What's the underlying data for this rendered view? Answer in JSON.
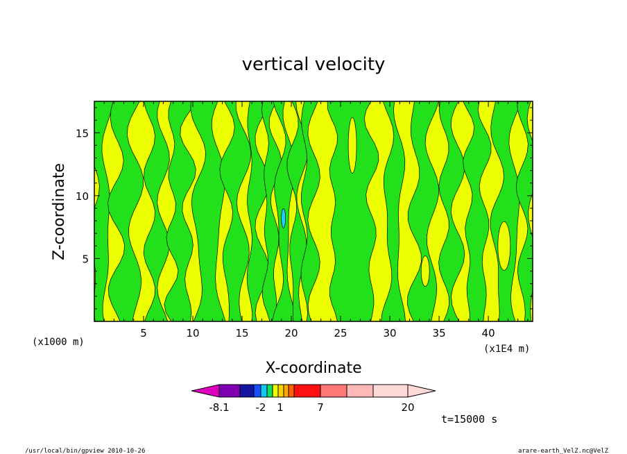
{
  "chart_data": {
    "type": "heatmap",
    "title": "vertical velocity",
    "xlabel": "X-coordinate",
    "ylabel": "Z-coordinate",
    "x_units_left": "(x1000 m)",
    "x_units_right": "(x1E4 m)",
    "xlim": [
      0,
      44.5
    ],
    "ylim": [
      0,
      17.5
    ],
    "x_ticks": [
      5,
      10,
      15,
      20,
      25,
      30,
      35,
      40
    ],
    "y_ticks": [
      5,
      10,
      15
    ],
    "fill_colors": {
      "negative_small": "#22e01a",
      "positive_small": "#ecff00",
      "negative_strong": "#1fd0ff"
    },
    "colorbar": {
      "colors": [
        "#e000c0",
        "#7f00b0",
        "#1414a0",
        "#1450ff",
        "#10c8f0",
        "#10e060",
        "#ecff00",
        "#ffd000",
        "#ffa800",
        "#ff6400",
        "#ff1010",
        "#ff7878",
        "#ffb8b8",
        "#ffd8d8"
      ],
      "labels": [
        "-8.1",
        "-2",
        "1",
        "7",
        "20"
      ]
    },
    "time_label": "t=15000 s"
  },
  "footer": {
    "left": "/usr/local/bin/gpview   2010-10-26",
    "right": "arare-earth_VelZ.nc@VelZ"
  }
}
